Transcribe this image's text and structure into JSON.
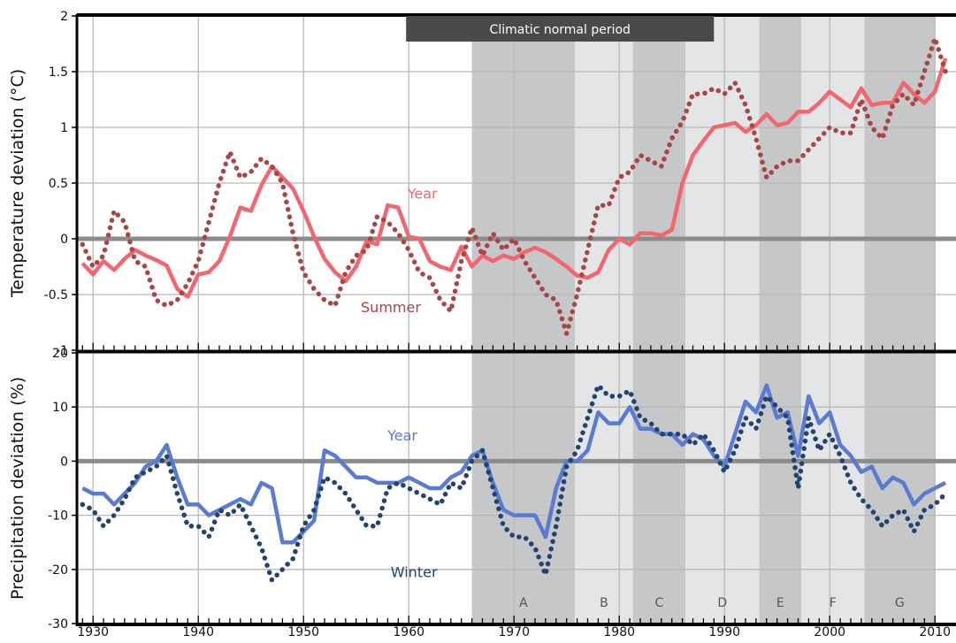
{
  "chart_data": [
    {
      "type": "line",
      "ylabel": "Temperature deviation (°C)",
      "ylim": [
        -1,
        2
      ],
      "yticks": [
        "2",
        "1.5",
        "1",
        "0.5",
        "0",
        "-0.5",
        "-1"
      ],
      "xlim": [
        1929,
        2011
      ],
      "grid": true,
      "annotation": "Climatic normal period",
      "annotation_range": [
        1960,
        1989
      ],
      "series": [
        {
          "name": "Year",
          "style": "solid",
          "color": "#f2676f",
          "x": [
            1929,
            1930,
            1931,
            1932,
            1933,
            1934,
            1935,
            1936,
            1937,
            1938,
            1939,
            1940,
            1941,
            1942,
            1943,
            1944,
            1945,
            1946,
            1947,
            1948,
            1949,
            1950,
            1951,
            1952,
            1953,
            1954,
            1955,
            1956,
            1957,
            1958,
            1959,
            1960,
            1961,
            1962,
            1963,
            1964,
            1965,
            1966,
            1967,
            1968,
            1969,
            1970,
            1971,
            1972,
            1973,
            1974,
            1975,
            1976,
            1977,
            1978,
            1979,
            1980,
            1981,
            1982,
            1983,
            1984,
            1985,
            1986,
            1987,
            1988,
            1989,
            1990,
            1991,
            1992,
            1993,
            1994,
            1995,
            1996,
            1997,
            1998,
            1999,
            2000,
            2001,
            2002,
            2003,
            2004,
            2005,
            2006,
            2007,
            2008,
            2009,
            2010,
            2011
          ],
          "values": [
            -0.22,
            -0.32,
            -0.2,
            -0.28,
            -0.18,
            -0.1,
            -0.15,
            -0.19,
            -0.24,
            -0.45,
            -0.52,
            -0.32,
            -0.3,
            -0.2,
            0.02,
            0.28,
            0.25,
            0.48,
            0.65,
            0.55,
            0.45,
            0.25,
            0.02,
            -0.18,
            -0.3,
            -0.38,
            -0.25,
            -0.02,
            -0.05,
            0.3,
            0.28,
            0.02,
            0.0,
            -0.2,
            -0.25,
            -0.28,
            -0.07,
            -0.25,
            -0.15,
            -0.2,
            -0.15,
            -0.18,
            -0.12,
            -0.08,
            -0.12,
            -0.18,
            -0.25,
            -0.33,
            -0.35,
            -0.3,
            -0.1,
            0.0,
            -0.05,
            0.05,
            0.05,
            0.03,
            0.08,
            0.5,
            0.75,
            0.88,
            1.0,
            1.02,
            1.04,
            0.96,
            1.02,
            1.12,
            1.02,
            1.04,
            1.14,
            1.14,
            1.22,
            1.32,
            1.25,
            1.18,
            1.35,
            1.2,
            1.22,
            1.22,
            1.4,
            1.3,
            1.22,
            1.32,
            1.62
          ]
        },
        {
          "name": "Summer",
          "style": "dotted",
          "color": "#a84545",
          "x": [
            1929,
            1930,
            1931,
            1932,
            1933,
            1934,
            1935,
            1936,
            1937,
            1938,
            1939,
            1940,
            1941,
            1942,
            1943,
            1944,
            1945,
            1946,
            1947,
            1948,
            1949,
            1950,
            1951,
            1952,
            1953,
            1954,
            1955,
            1956,
            1957,
            1958,
            1959,
            1960,
            1961,
            1962,
            1963,
            1964,
            1965,
            1966,
            1967,
            1968,
            1969,
            1970,
            1971,
            1972,
            1973,
            1974,
            1975,
            1976,
            1977,
            1978,
            1979,
            1980,
            1981,
            1982,
            1983,
            1984,
            1985,
            1986,
            1987,
            1988,
            1989,
            1990,
            1991,
            1992,
            1993,
            1994,
            1995,
            1996,
            1997,
            1998,
            1999,
            2000,
            2001,
            2002,
            2003,
            2004,
            2005,
            2006,
            2007,
            2008,
            2009,
            2010,
            2011
          ],
          "values": [
            -0.05,
            -0.25,
            -0.15,
            0.25,
            0.15,
            -0.2,
            -0.25,
            -0.55,
            -0.6,
            -0.55,
            -0.4,
            -0.2,
            0.15,
            0.5,
            0.78,
            0.55,
            0.6,
            0.72,
            0.65,
            0.5,
            0.05,
            -0.3,
            -0.45,
            -0.55,
            -0.6,
            -0.3,
            -0.15,
            -0.1,
            0.2,
            0.15,
            0.05,
            -0.1,
            -0.3,
            -0.35,
            -0.55,
            -0.65,
            -0.2,
            0.1,
            -0.15,
            0.05,
            -0.1,
            0.0,
            -0.2,
            -0.35,
            -0.5,
            -0.55,
            -0.85,
            -0.5,
            -0.1,
            0.3,
            0.3,
            0.55,
            0.6,
            0.75,
            0.7,
            0.65,
            0.9,
            1.05,
            1.3,
            1.3,
            1.35,
            1.3,
            1.4,
            1.2,
            0.9,
            0.55,
            0.65,
            0.7,
            0.7,
            0.8,
            0.9,
            1.0,
            0.95,
            0.95,
            1.25,
            1.0,
            0.9,
            1.2,
            1.3,
            1.2,
            1.5,
            1.8,
            1.5
          ]
        }
      ],
      "annotations": [
        {
          "text": "Year",
          "x": 1961.3,
          "y": 0.36
        },
        {
          "text": "Summer",
          "x": 1958.3,
          "y": -0.66
        }
      ]
    },
    {
      "type": "line",
      "ylabel": "Precipitation deviation (%)",
      "ylim": [
        -30,
        20
      ],
      "yticks": [
        "20",
        "10",
        "0",
        "-10",
        "-20",
        "-30"
      ],
      "xlim": [
        1929,
        2011
      ],
      "xticks": [
        "1930",
        "1940",
        "1950",
        "1960",
        "1970",
        "1980",
        "1990",
        "2000",
        "2010"
      ],
      "grid": true,
      "shaded_periods": [
        {
          "label": "A",
          "from": 1966,
          "to": 1975.8,
          "shade": "dark"
        },
        {
          "label": "B",
          "from": 1975.8,
          "to": 1981.3,
          "shade": "light"
        },
        {
          "label": "C",
          "from": 1981.3,
          "to": 1986.3,
          "shade": "dark"
        },
        {
          "label": "D",
          "from": 1986.3,
          "to": 1993.3,
          "shade": "light"
        },
        {
          "label": "E",
          "from": 1993.3,
          "to": 1997.3,
          "shade": "dark"
        },
        {
          "label": "F",
          "from": 1997.3,
          "to": 2003.3,
          "shade": "light"
        },
        {
          "label": "G",
          "from": 2003.3,
          "to": 2010,
          "shade": "dark"
        }
      ],
      "series": [
        {
          "name": "Year",
          "style": "solid",
          "color": "#5b7bd0",
          "x": [
            1929,
            1930,
            1931,
            1932,
            1933,
            1934,
            1935,
            1936,
            1937,
            1938,
            1939,
            1940,
            1941,
            1942,
            1943,
            1944,
            1945,
            1946,
            1947,
            1948,
            1949,
            1950,
            1951,
            1952,
            1953,
            1954,
            1955,
            1956,
            1957,
            1958,
            1959,
            1960,
            1961,
            1962,
            1963,
            1964,
            1965,
            1966,
            1967,
            1968,
            1969,
            1970,
            1971,
            1972,
            1973,
            1974,
            1975,
            1976,
            1977,
            1978,
            1979,
            1980,
            1981,
            1982,
            1983,
            1984,
            1985,
            1986,
            1987,
            1988,
            1989,
            1990,
            1991,
            1992,
            1993,
            1994,
            1995,
            1996,
            1997,
            1998,
            1999,
            2000,
            2001,
            2002,
            2003,
            2004,
            2005,
            2006,
            2007,
            2008,
            2009,
            2010,
            2011
          ],
          "values": [
            -5,
            -6,
            -6,
            -8,
            -6,
            -4,
            -1,
            0,
            3,
            -3,
            -8,
            -8,
            -10,
            -9,
            -8,
            -7,
            -8,
            -4,
            -5,
            -15,
            -15,
            -13,
            -11,
            2,
            1,
            -1,
            -3,
            -3,
            -4,
            -4,
            -4,
            -3,
            -4,
            -5,
            -5,
            -3,
            -2,
            1,
            2,
            -4,
            -9,
            -10,
            -10,
            -10,
            -14,
            -5,
            0,
            0,
            2,
            9,
            7,
            7,
            10,
            6,
            6,
            5,
            5,
            3,
            5,
            4,
            1,
            -1,
            5,
            11,
            9,
            14,
            8,
            9,
            1,
            12,
            7,
            9,
            3,
            1,
            -2,
            -1,
            -5,
            -3,
            -4,
            -8,
            -6,
            -5,
            -4
          ]
        },
        {
          "name": "Winter",
          "style": "dotted",
          "color": "#23436f",
          "x": [
            1929,
            1930,
            1931,
            1932,
            1933,
            1934,
            1935,
            1936,
            1937,
            1938,
            1939,
            1940,
            1941,
            1942,
            1943,
            1944,
            1945,
            1946,
            1947,
            1948,
            1949,
            1950,
            1951,
            1952,
            1953,
            1954,
            1955,
            1956,
            1957,
            1958,
            1959,
            1960,
            1961,
            1962,
            1963,
            1964,
            1965,
            1966,
            1967,
            1968,
            1969,
            1970,
            1971,
            1972,
            1973,
            1974,
            1975,
            1976,
            1977,
            1978,
            1979,
            1980,
            1981,
            1982,
            1983,
            1984,
            1985,
            1986,
            1987,
            1988,
            1989,
            1990,
            1991,
            1992,
            1993,
            1994,
            1995,
            1996,
            1997,
            1998,
            1999,
            2000,
            2001,
            2002,
            2003,
            2004,
            2005,
            2006,
            2007,
            2008,
            2009,
            2010,
            2011
          ],
          "values": [
            -8,
            -9,
            -12,
            -10,
            -7,
            -3,
            -2,
            -1,
            1,
            -6,
            -12,
            -12,
            -14,
            -9,
            -10,
            -8,
            -12,
            -16,
            -22,
            -20,
            -18,
            -12,
            -9,
            -3,
            -4,
            -6,
            -9,
            -12,
            -12,
            -5,
            -4,
            -5,
            -6,
            -7,
            -8,
            -4,
            -5,
            0,
            2,
            -5,
            -12,
            -14,
            -14,
            -16,
            -21,
            -12,
            -1,
            2,
            8,
            14,
            12,
            12,
            13,
            8,
            7,
            5,
            5,
            5,
            3,
            5,
            2,
            -2,
            2,
            8,
            6,
            12,
            10,
            8,
            -5,
            8,
            2,
            5,
            1,
            -4,
            -7,
            -9,
            -12,
            -10,
            -9,
            -13,
            -9,
            -8,
            -6
          ]
        }
      ],
      "annotations": [
        {
          "text": "Year",
          "x": 1959.4,
          "y": 3.8
        },
        {
          "text": "Winter",
          "x": 1960.5,
          "y": -21.4
        }
      ]
    }
  ],
  "colors": {
    "dark_band": "#c6c7c9",
    "light_band": "#e4e5e6",
    "zero_line": "#8c8c8c",
    "grid": "#b8b8b8",
    "annotation_box": "#4a4a4a",
    "band_label": "#555555"
  }
}
